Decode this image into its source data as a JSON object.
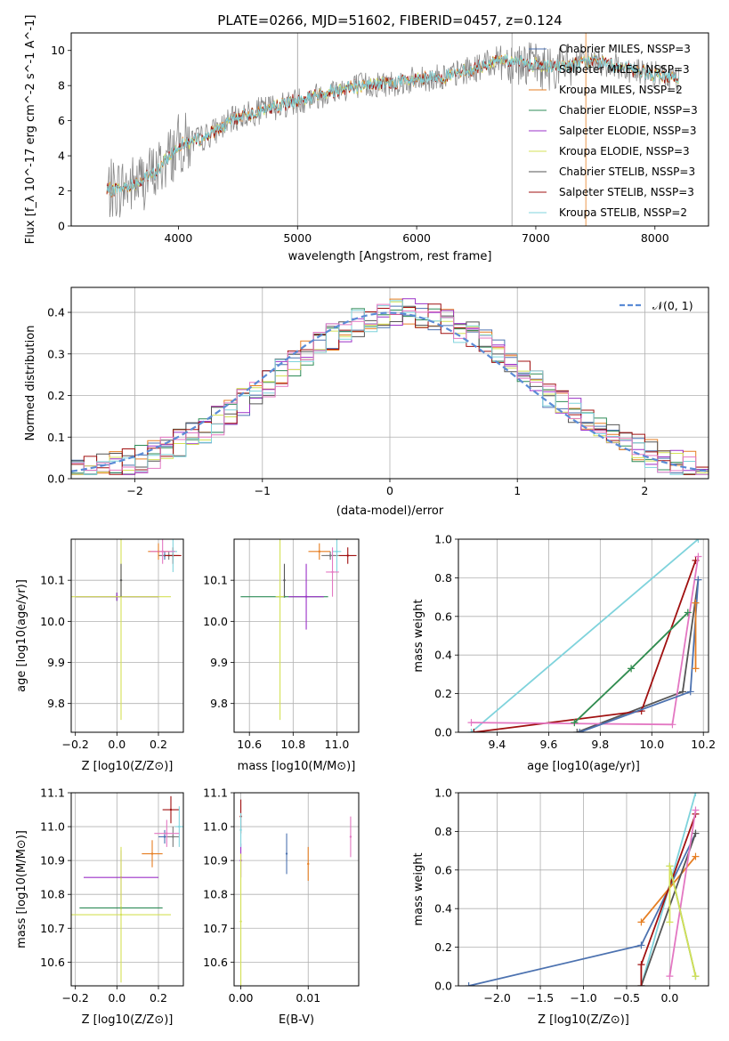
{
  "figure": {
    "title": "PLATE=0266, MJD=51602, FIBERID=0457, z=0.124"
  },
  "colors": {
    "Chabrier MILES": "#4C72B0",
    "Salpeter MILES": "#7a7a7a",
    "Kroupa MILES": "#E67E22",
    "Chabrier ELODIE": "#2E8B57",
    "Salpeter ELODIE": "#9B30C8",
    "Kroupa ELODIE": "#D4E157",
    "Chabrier STELIB": "#555555",
    "Salpeter STELIB": "#A01010",
    "Kroupa STELIB": "#7FD3DC",
    "pink": "#E377C2",
    "blue": "#5B7FD6",
    "normal": "#5B8CD6"
  },
  "chart_data": [
    {
      "type": "line",
      "title": "PLATE=0266, MJD=51602, FIBERID=0457, z=0.124",
      "xlabel": "wavelength [Angstrom, rest frame]",
      "ylabel": "Flux [f_λ 10^-17 erg cm^-2 s^-1 A^-1]",
      "xlim": [
        3100,
        8450
      ],
      "ylim": [
        0,
        11
      ],
      "xticks": [
        4000,
        5000,
        6000,
        7000,
        8000
      ],
      "yticks": [
        0,
        2,
        4,
        6,
        8,
        10
      ],
      "grid": false,
      "legend_position": "top-right",
      "legend": [
        "Chabrier MILES, N_SSP=3",
        "Salpeter MILES, N_SSP=3",
        "Kroupa MILES, N_SSP=2",
        "Chabrier ELODIE, N_SSP=3",
        "Salpeter ELODIE, N_SSP=3",
        "Kroupa ELODIE, N_SSP=3",
        "Chabrier STELIB, N_SSP=3",
        "Salpeter STELIB, N_SSP=3",
        "Kroupa STELIB, N_SSP=2"
      ],
      "continuum": {
        "x": [
          3400,
          3600,
          3800,
          4000,
          4200,
          4500,
          4800,
          5100,
          5400,
          5700,
          6000,
          6300,
          6500,
          6700,
          6900,
          7100,
          7300,
          7500,
          7800,
          8000,
          8200
        ],
        "y": [
          2.0,
          2.3,
          3.0,
          4.6,
          5.0,
          6.2,
          6.8,
          7.3,
          7.9,
          8.1,
          8.3,
          8.6,
          9.0,
          9.5,
          9.3,
          9.0,
          9.2,
          9.4,
          8.9,
          8.6,
          8.4
        ]
      }
    },
    {
      "type": "line",
      "xlabel": "(data-model)/error",
      "ylabel": "Normed distribution",
      "xlim": [
        -2.5,
        2.5
      ],
      "ylim": [
        0,
        0.46
      ],
      "xticks": [
        -2,
        -1,
        0,
        1,
        2
      ],
      "yticks": [
        0.0,
        0.1,
        0.2,
        0.3,
        0.4
      ],
      "grid": true,
      "legend_position": "top-right",
      "legend": [
        "𝒩(0, 1)"
      ],
      "histogram_bins": {
        "start": -2.5,
        "width": 0.1,
        "count": 50
      },
      "reference_curve": "𝒩(0, 1)"
    },
    {
      "type": "scatter",
      "xlabel": "Z [log10(Z/Z⊙)]",
      "ylabel": "age [log10(age/yr)]",
      "xlim": [
        -0.22,
        0.32
      ],
      "ylim": [
        9.73,
        10.2
      ],
      "xticks": [
        -0.2,
        0.0,
        0.2
      ],
      "yticks": [
        9.8,
        9.9,
        10.0,
        10.1
      ],
      "grid": true,
      "points": [
        {
          "series": "Chabrier MILES",
          "x": 0.23,
          "y": 10.16,
          "xerr": 0.03,
          "yerr": 0.01
        },
        {
          "series": "Salpeter MILES",
          "x": 0.25,
          "y": 10.16,
          "xerr": 0.05,
          "yerr": 0.01
        },
        {
          "series": "Kroupa MILES",
          "x": 0.2,
          "y": 10.17,
          "xerr": 0.05,
          "yerr": 0.02
        },
        {
          "series": "Chabrier ELODIE",
          "x": 0.0,
          "y": 10.06,
          "xerr": 0.2,
          "yerr": 0.01
        },
        {
          "series": "Salpeter ELODIE",
          "x": 0.0,
          "y": 10.06,
          "xerr": 0.2,
          "yerr": 0.01
        },
        {
          "series": "Kroupa ELODIE",
          "x": 0.02,
          "y": 10.06,
          "xerr": 0.24,
          "yerr": 0.3
        },
        {
          "series": "Chabrier STELIB",
          "x": 0.02,
          "y": 10.1,
          "xerr": 0.005,
          "yerr": 0.04
        },
        {
          "series": "Salpeter STELIB",
          "x": 0.27,
          "y": 10.16,
          "xerr": 0.04,
          "yerr": 0.02
        },
        {
          "series": "Kroupa STELIB",
          "x": 0.27,
          "y": 10.17,
          "xerr": 0.02,
          "yerr": 0.05
        },
        {
          "series": "pink",
          "x": 0.22,
          "y": 10.17,
          "xerr": 0.06,
          "yerr": 0.03
        }
      ]
    },
    {
      "type": "scatter",
      "xlabel": "mass [log10(M/M⊙)]",
      "ylabel": "",
      "xlim": [
        10.53,
        11.1
      ],
      "ylim": [
        9.73,
        10.2
      ],
      "xticks": [
        10.6,
        10.8,
        11.0
      ],
      "yticks": [
        9.8,
        9.9,
        10.0,
        10.1
      ],
      "grid": true,
      "points": [
        {
          "series": "Chabrier MILES",
          "x": 10.97,
          "y": 10.16,
          "xerr": 0.02,
          "yerr": 0.01
        },
        {
          "series": "Salpeter MILES",
          "x": 10.97,
          "y": 10.16,
          "xerr": 0.04,
          "yerr": 0.01
        },
        {
          "series": "Kroupa MILES",
          "x": 10.92,
          "y": 10.17,
          "xerr": 0.05,
          "yerr": 0.02
        },
        {
          "series": "Chabrier ELODIE",
          "x": 10.76,
          "y": 10.06,
          "xerr": 0.2,
          "yerr": 0.0
        },
        {
          "series": "Salpeter ELODIE",
          "x": 10.86,
          "y": 10.06,
          "xerr": 0.08,
          "yerr": 0.08
        },
        {
          "series": "Kroupa ELODIE",
          "x": 10.74,
          "y": 10.06,
          "xerr": 0.02,
          "yerr": 0.3
        },
        {
          "series": "Chabrier STELIB",
          "x": 10.76,
          "y": 10.1,
          "xerr": 0.0,
          "yerr": 0.04
        },
        {
          "series": "Salpeter STELIB",
          "x": 11.05,
          "y": 10.16,
          "xerr": 0.04,
          "yerr": 0.02
        },
        {
          "series": "Kroupa STELIB",
          "x": 11.0,
          "y": 10.17,
          "xerr": 0.02,
          "yerr": 0.05
        },
        {
          "series": "pink",
          "x": 10.98,
          "y": 10.12,
          "xerr": 0.03,
          "yerr": 0.06
        }
      ]
    },
    {
      "type": "line",
      "xlabel": "age [log10(age/yr)]",
      "ylabel": "mass weight",
      "xlim": [
        9.25,
        10.22
      ],
      "ylim": [
        0.0,
        1.0
      ],
      "xticks": [
        9.4,
        9.6,
        9.8,
        10.0,
        10.2
      ],
      "yticks": [
        0.0,
        0.2,
        0.4,
        0.6,
        0.8,
        1.0
      ],
      "grid": true,
      "series": [
        {
          "name": "Kroupa STELIB",
          "x": [
            9.3,
            10.18
          ],
          "y": [
            0.0,
            1.0
          ]
        },
        {
          "name": "Chabrier STELIB",
          "x": [
            9.71,
            10.12,
            10.18
          ],
          "y": [
            0.0,
            0.21,
            0.79
          ]
        },
        {
          "name": "Salpeter STELIB",
          "x": [
            9.31,
            9.96,
            10.17
          ],
          "y": [
            0.0,
            0.11,
            0.89
          ]
        },
        {
          "name": "pink",
          "x": [
            9.3,
            10.08,
            10.18
          ],
          "y": [
            0.05,
            0.04,
            0.91
          ]
        },
        {
          "name": "Chabrier MILES",
          "x": [
            9.72,
            10.15,
            10.18
          ],
          "y": [
            0.0,
            0.21,
            0.79
          ]
        },
        {
          "name": "Kroupa MILES",
          "x": [
            10.17,
            10.17
          ],
          "y": [
            0.33,
            0.67
          ]
        },
        {
          "name": "Kroupa ELODIE",
          "x": [
            9.7,
            9.92,
            10.14
          ],
          "y": [
            0.05,
            0.33,
            0.62
          ]
        },
        {
          "name": "Chabrier ELODIE",
          "x": [
            9.7,
            9.92,
            10.14
          ],
          "y": [
            0.05,
            0.33,
            0.62
          ]
        }
      ]
    },
    {
      "type": "scatter",
      "xlabel": "Z [log10(Z/Z⊙)]",
      "ylabel": "mass [log10(M/M⊙)]",
      "xlim": [
        -0.22,
        0.32
      ],
      "ylim": [
        10.53,
        11.1
      ],
      "xticks": [
        -0.2,
        0.0,
        0.2
      ],
      "yticks": [
        10.6,
        10.7,
        10.8,
        10.9,
        11.0,
        11.1
      ],
      "grid": true,
      "points": [
        {
          "series": "Chabrier MILES",
          "x": 0.23,
          "y": 10.97,
          "xerr": 0.03,
          "yerr": 0.02
        },
        {
          "series": "Salpeter MILES",
          "x": 0.27,
          "y": 10.97,
          "xerr": 0.03,
          "yerr": 0.03
        },
        {
          "series": "Kroupa MILES",
          "x": 0.17,
          "y": 10.92,
          "xerr": 0.05,
          "yerr": 0.04
        },
        {
          "series": "Chabrier ELODIE",
          "x": 0.02,
          "y": 10.76,
          "xerr": 0.2,
          "yerr": 0.0
        },
        {
          "series": "Salpeter ELODIE",
          "x": 0.02,
          "y": 10.85,
          "xerr": 0.18,
          "yerr": 0.08
        },
        {
          "series": "Kroupa ELODIE",
          "x": 0.02,
          "y": 10.74,
          "xerr": 0.24,
          "yerr": 0.2
        },
        {
          "series": "Salpeter STELIB",
          "x": 0.26,
          "y": 11.05,
          "xerr": 0.04,
          "yerr": 0.04
        },
        {
          "series": "Kroupa STELIB",
          "x": 0.3,
          "y": 11.0,
          "xerr": 0.02,
          "yerr": 0.06
        },
        {
          "series": "pink",
          "x": 0.24,
          "y": 10.98,
          "xerr": 0.06,
          "yerr": 0.04
        }
      ]
    },
    {
      "type": "scatter",
      "xlabel": "E(B-V)",
      "ylabel": "",
      "xlim": [
        -0.001,
        0.0175
      ],
      "ylim": [
        10.53,
        11.1
      ],
      "xticks": [
        0.0,
        0.01
      ],
      "yticks": [
        10.6,
        10.7,
        10.8,
        10.9,
        11.0,
        11.1
      ],
      "grid": true,
      "points": [
        {
          "series": "Chabrier MILES",
          "x": 0.0068,
          "y": 10.92,
          "xerr": 0,
          "yerr": 0.06
        },
        {
          "series": "Kroupa MILES",
          "x": 0.01,
          "y": 10.89,
          "xerr": 0,
          "yerr": 0.05
        },
        {
          "series": "Salpeter STELIB",
          "x": 0.0,
          "y": 11.03,
          "xerr": 0,
          "yerr": 0.05
        },
        {
          "series": "Salpeter ELODIE",
          "x": 0.0,
          "y": 10.9,
          "xerr": 0,
          "yerr": 0.05
        },
        {
          "series": "Kroupa STELIB",
          "x": 0.0,
          "y": 10.99,
          "xerr": 0,
          "yerr": 0.05
        },
        {
          "series": "Kroupa ELODIE",
          "x": 0.0,
          "y": 10.72,
          "xerr": 0,
          "yerr": 0.2
        },
        {
          "series": "pink",
          "x": 0.0163,
          "y": 10.97,
          "xerr": 0,
          "yerr": 0.06
        }
      ]
    },
    {
      "type": "line",
      "xlabel": "Z [log10(Z/Z⊙)]",
      "ylabel": "mass weight",
      "xlim": [
        -2.45,
        0.45
      ],
      "ylim": [
        0.0,
        1.0
      ],
      "xticks": [
        -2.0,
        -1.5,
        -1.0,
        -0.5,
        0.0
      ],
      "yticks": [
        0.0,
        0.2,
        0.4,
        0.6,
        0.8,
        1.0
      ],
      "grid": true,
      "series": [
        {
          "name": "Chabrier MILES",
          "x": [
            -2.33,
            -0.33,
            0.3
          ],
          "y": [
            0.0,
            0.21,
            0.79
          ]
        },
        {
          "name": "Kroupa MILES",
          "x": [
            -0.33,
            0.3
          ],
          "y": [
            0.33,
            0.67
          ]
        },
        {
          "name": "Kroupa STELIB",
          "x": [
            -0.33,
            0.3
          ],
          "y": [
            0.0,
            1.0
          ]
        },
        {
          "name": "Chabrier STELIB",
          "x": [
            -0.33,
            0.3
          ],
          "y": [
            0.0,
            0.79
          ]
        },
        {
          "name": "Salpeter STELIB",
          "x": [
            -0.33,
            -0.33,
            0.3
          ],
          "y": [
            0.0,
            0.11,
            0.89
          ]
        },
        {
          "name": "pink",
          "x": [
            0.0,
            0.3
          ],
          "y": [
            0.05,
            0.91
          ]
        },
        {
          "name": "Chabrier ELODIE",
          "x": [
            0.0,
            0.3
          ],
          "y": [
            0.62,
            0.05
          ]
        },
        {
          "name": "Kroupa ELODIE",
          "x": [
            0.0,
            0.0,
            0.3
          ],
          "y": [
            0.33,
            0.62,
            0.05
          ]
        }
      ]
    }
  ]
}
